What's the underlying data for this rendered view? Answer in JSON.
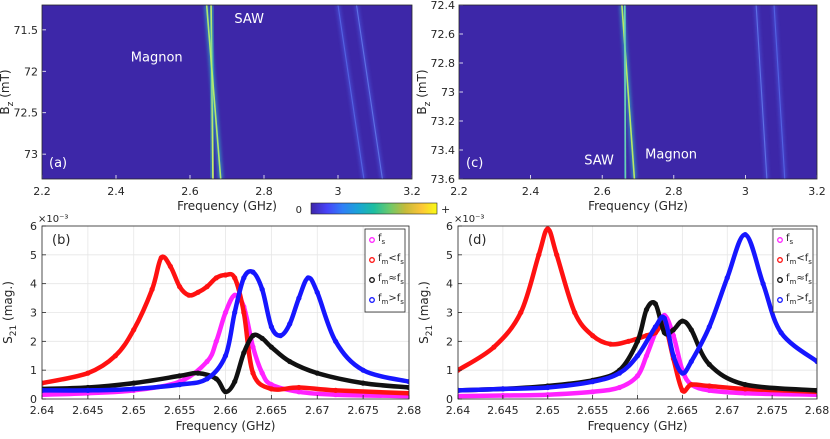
{
  "figure": {
    "colorbar": {
      "low_label": "0",
      "high_label": "+",
      "colors": [
        "#3e26a8",
        "#4743f8",
        "#2f7ff7",
        "#1aa4d6",
        "#1dbea0",
        "#6cc96b",
        "#c6bb3a",
        "#fcc538",
        "#f9fb15"
      ]
    }
  },
  "chart_data": [
    {
      "id": "a",
      "type": "heatmap",
      "panel_label": "(a)",
      "xlabel": "Frequency (GHz)",
      "ylabel": "B_z (mT)",
      "ylabel_main": "B",
      "ylabel_sub": "z",
      "ylabel_rest": " (mT)",
      "xlim": [
        2.2,
        3.2
      ],
      "ylim": [
        71.2,
        73.3
      ],
      "y_reversed": true,
      "xticks": [
        2.2,
        2.4,
        2.6,
        2.8,
        3,
        3.2
      ],
      "xtick_labels": [
        "2.2",
        "2.4",
        "2.6",
        "2.8",
        "3",
        "3.2"
      ],
      "yticks": [
        71.5,
        72,
        72.5,
        73
      ],
      "ytick_labels": [
        "71.5",
        "72",
        "72.5",
        "73"
      ],
      "background": "#3d27a8",
      "annotations": [
        {
          "text": "Magnon",
          "x": 2.44,
          "y": 71.88
        },
        {
          "text": "SAW",
          "x": 2.72,
          "y": 71.42
        }
      ],
      "lines": [
        {
          "name": "SAW",
          "points": [
            [
              2.657,
              71.2
            ],
            [
              2.662,
              73.3
            ]
          ],
          "color": "#2de0b5",
          "core": "#d8f060"
        },
        {
          "name": "Magnon",
          "points": [
            [
              2.645,
              71.2
            ],
            [
              2.683,
              73.3
            ]
          ],
          "color": "#2ec4c8",
          "core": "#b7ee6a"
        },
        {
          "name": "mode-3",
          "points": [
            [
              3.0,
              71.2
            ],
            [
              3.07,
              73.3
            ]
          ],
          "color": "#4a5ee8",
          "core": "#5a70f0"
        },
        {
          "name": "mode-4",
          "points": [
            [
              3.05,
              71.2
            ],
            [
              3.12,
              73.3
            ]
          ],
          "color": "#4a5ee8",
          "core": "#6a84f4"
        }
      ]
    },
    {
      "id": "c",
      "type": "heatmap",
      "panel_label": "(c)",
      "xlabel": "Frequency (GHz)",
      "ylabel": "B_z (mT)",
      "ylabel_main": "B",
      "ylabel_sub": "z",
      "ylabel_rest": " (mT)",
      "xlim": [
        2.2,
        3.2
      ],
      "ylim": [
        72.4,
        73.6
      ],
      "y_reversed": true,
      "xticks": [
        2.2,
        2.4,
        2.6,
        2.8,
        3,
        3.2
      ],
      "xtick_labels": [
        "2.2",
        "2.4",
        "2.6",
        "2.8",
        "3",
        "3.2"
      ],
      "yticks": [
        72.4,
        72.6,
        72.8,
        73,
        73.2,
        73.4,
        73.6
      ],
      "ytick_labels": [
        "72.4",
        "72.6",
        "72.8",
        "73",
        "73.2",
        "73.4",
        "73.6"
      ],
      "background": "#3d27a8",
      "annotations": [
        {
          "text": "SAW",
          "x": 2.55,
          "y": 73.5
        },
        {
          "text": "Magnon",
          "x": 2.72,
          "y": 73.46
        }
      ],
      "lines": [
        {
          "name": "Magnon",
          "points": [
            [
              2.655,
              72.4
            ],
            [
              2.69,
              73.6
            ]
          ],
          "color": "#2ec4c8",
          "core": "#c0ef60"
        },
        {
          "name": "SAW",
          "points": [
            [
              2.663,
              72.4
            ],
            [
              2.665,
              73.6
            ]
          ],
          "color": "#2a9fd8",
          "core": "#6fd6b0"
        },
        {
          "name": "mode-3",
          "points": [
            [
              3.03,
              72.4
            ],
            [
              3.06,
              73.6
            ]
          ],
          "color": "#4a5ee8",
          "core": "#6a84f4"
        },
        {
          "name": "mode-4",
          "points": [
            [
              3.08,
              72.4
            ],
            [
              3.11,
              73.6
            ]
          ],
          "color": "#4a5ee8",
          "core": "#5a70f0"
        }
      ]
    },
    {
      "id": "b",
      "type": "scatter",
      "panel_label": "(b)",
      "xlabel": "Frequency (GHz)",
      "ylabel": "S_21 (mag.)",
      "ylabel_main": "S",
      "ylabel_sub": "21",
      "ylabel_rest": " (mag.)",
      "scale_exponent": "×10⁻³",
      "xlim": [
        2.64,
        2.68
      ],
      "ylim": [
        0,
        6
      ],
      "xticks": [
        2.64,
        2.645,
        2.65,
        2.655,
        2.66,
        2.665,
        2.67,
        2.675,
        2.68
      ],
      "xtick_labels": [
        "2.64",
        "2.645",
        "2.65",
        "2.655",
        "2.66",
        "2.665",
        "2.67",
        "2.675",
        "2.68"
      ],
      "yticks": [
        0,
        1,
        2,
        3,
        4,
        5,
        6
      ],
      "ytick_labels": [
        "0",
        "1",
        "2",
        "3",
        "4",
        "5",
        "6"
      ],
      "grid": true,
      "legend_position": "top-right",
      "series": [
        {
          "name": "f_s",
          "label_main": "f",
          "label_sub": "s",
          "label_rel": "",
          "label_tail": "",
          "color": "#ff22ff",
          "x": [
            2.64,
            2.645,
            2.65,
            2.655,
            2.658,
            2.659,
            2.66,
            2.661,
            2.662,
            2.663,
            2.664,
            2.665,
            2.668,
            2.672,
            2.68
          ],
          "y": [
            0.15,
            0.2,
            0.3,
            0.6,
            1.3,
            2.0,
            3.0,
            3.6,
            3.2,
            1.8,
            0.9,
            0.5,
            0.25,
            0.15,
            0.1
          ]
        },
        {
          "name": "f_m<f_s",
          "label_main": "f",
          "label_sub": "m",
          "label_rel": "<",
          "label_tail": "s",
          "color": "#ff1111",
          "x": [
            2.64,
            2.645,
            2.648,
            2.65,
            2.652,
            2.653,
            2.654,
            2.655,
            2.656,
            2.657,
            2.658,
            2.659,
            2.66,
            2.661,
            2.662,
            2.663,
            2.665,
            2.668,
            2.672,
            2.68
          ],
          "y": [
            0.55,
            0.9,
            1.5,
            2.4,
            3.8,
            4.9,
            4.6,
            3.9,
            3.6,
            3.7,
            3.9,
            4.2,
            4.3,
            4.2,
            3.0,
            0.9,
            0.35,
            0.4,
            0.3,
            0.2
          ]
        },
        {
          "name": "f_m≈f_s",
          "label_main": "f",
          "label_sub": "m",
          "label_rel": "≈",
          "label_tail": "s",
          "color": "#111111",
          "x": [
            2.64,
            2.645,
            2.65,
            2.655,
            2.657,
            2.659,
            2.66,
            2.661,
            2.662,
            2.663,
            2.664,
            2.665,
            2.667,
            2.67,
            2.675,
            2.68
          ],
          "y": [
            0.35,
            0.4,
            0.55,
            0.8,
            0.9,
            0.7,
            0.25,
            0.6,
            1.6,
            2.2,
            2.1,
            1.8,
            1.3,
            0.9,
            0.55,
            0.4
          ]
        },
        {
          "name": "f_m>f_s",
          "label_main": "f",
          "label_sub": "m",
          "label_rel": ">",
          "label_tail": "s",
          "color": "#1616ff",
          "x": [
            2.64,
            2.645,
            2.65,
            2.655,
            2.658,
            2.66,
            2.661,
            2.662,
            2.663,
            2.664,
            2.665,
            2.666,
            2.667,
            2.668,
            2.669,
            2.67,
            2.672,
            2.675,
            2.68
          ],
          "y": [
            0.3,
            0.3,
            0.35,
            0.5,
            0.7,
            1.5,
            3.0,
            4.2,
            4.4,
            3.8,
            2.5,
            2.2,
            2.6,
            3.5,
            4.2,
            3.7,
            2.0,
            1.0,
            0.6
          ]
        }
      ]
    },
    {
      "id": "d",
      "type": "scatter",
      "panel_label": "(d)",
      "xlabel": "Frequency (GHz)",
      "ylabel": "S_21 (mag.)",
      "ylabel_main": "S",
      "ylabel_sub": "21",
      "ylabel_rest": " (mag.)",
      "scale_exponent": "×10⁻³",
      "xlim": [
        2.64,
        2.68
      ],
      "ylim": [
        0,
        6
      ],
      "xticks": [
        2.64,
        2.645,
        2.65,
        2.655,
        2.66,
        2.665,
        2.67,
        2.675,
        2.68
      ],
      "xtick_labels": [
        "2.64",
        "2.645",
        "2.65",
        "2.655",
        "2.66",
        "2.665",
        "2.67",
        "2.675",
        "2.68"
      ],
      "yticks": [
        0,
        1,
        2,
        3,
        4,
        5,
        6
      ],
      "ytick_labels": [
        "0",
        "1",
        "2",
        "3",
        "4",
        "5",
        "6"
      ],
      "grid": true,
      "legend_position": "top-right",
      "series": [
        {
          "name": "f_s",
          "label_main": "f",
          "label_sub": "s",
          "label_rel": "",
          "label_tail": "",
          "color": "#ff22ff",
          "x": [
            2.64,
            2.645,
            2.65,
            2.655,
            2.658,
            2.66,
            2.661,
            2.662,
            2.663,
            2.664,
            2.665,
            2.666,
            2.668,
            2.672,
            2.68
          ],
          "y": [
            0.1,
            0.12,
            0.15,
            0.25,
            0.4,
            0.8,
            1.5,
            2.3,
            2.9,
            2.2,
            1.0,
            0.5,
            0.3,
            0.2,
            0.15
          ]
        },
        {
          "name": "f_m<f_s",
          "label_main": "f",
          "label_sub": "m",
          "label_rel": "<",
          "label_tail": "s",
          "color": "#ff1111",
          "x": [
            2.64,
            2.644,
            2.647,
            2.649,
            2.65,
            2.651,
            2.653,
            2.655,
            2.657,
            2.659,
            2.661,
            2.662,
            2.663,
            2.664,
            2.665,
            2.666,
            2.668,
            2.672,
            2.68
          ],
          "y": [
            1.0,
            1.8,
            3.0,
            5.0,
            5.9,
            5.0,
            3.0,
            2.2,
            1.9,
            2.0,
            2.2,
            2.3,
            2.6,
            1.4,
            0.3,
            0.5,
            0.45,
            0.35,
            0.25
          ]
        },
        {
          "name": "f_m≈f_s",
          "label_main": "f",
          "label_sub": "m",
          "label_rel": "≈",
          "label_tail": "s",
          "color": "#111111",
          "x": [
            2.64,
            2.645,
            2.65,
            2.655,
            2.658,
            2.66,
            2.661,
            2.662,
            2.663,
            2.664,
            2.665,
            2.666,
            2.668,
            2.672,
            2.68
          ],
          "y": [
            0.3,
            0.35,
            0.45,
            0.65,
            1.0,
            2.0,
            3.1,
            3.3,
            2.3,
            2.4,
            2.7,
            2.4,
            1.2,
            0.5,
            0.3
          ]
        },
        {
          "name": "f_m>f_s",
          "label_main": "f",
          "label_sub": "m",
          "label_rel": ">",
          "label_tail": "s",
          "color": "#1616ff",
          "x": [
            2.64,
            2.645,
            2.65,
            2.655,
            2.658,
            2.66,
            2.662,
            2.663,
            2.664,
            2.665,
            2.666,
            2.668,
            2.67,
            2.672,
            2.674,
            2.676,
            2.68
          ],
          "y": [
            0.3,
            0.35,
            0.4,
            0.6,
            0.9,
            1.5,
            2.5,
            2.8,
            1.5,
            0.9,
            1.3,
            2.5,
            4.2,
            5.7,
            4.0,
            2.3,
            1.3
          ]
        }
      ]
    }
  ]
}
